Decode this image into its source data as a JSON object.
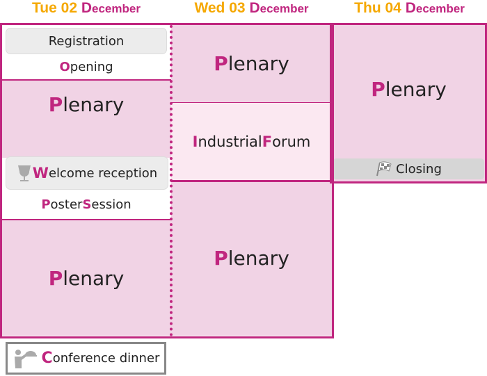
{
  "colors": {
    "accent": "#c0267f",
    "day": "#f5a800",
    "session": "#f1d3e5",
    "forum": "#fbe8f1",
    "break": "#ececec"
  },
  "days": [
    {
      "weekday_date": "Tue 02",
      "month_initial": "D",
      "month_rest": "ecember"
    },
    {
      "weekday_date": "Wed 03",
      "month_initial": "D",
      "month_rest": "ecember"
    },
    {
      "weekday_date": "Thu 04",
      "month_initial": "D",
      "month_rest": "ecember"
    }
  ],
  "tue": {
    "registration": "Registration",
    "opening": {
      "initial": "O",
      "rest": "pening"
    },
    "plenary1": {
      "initial": "P",
      "rest": "lenary"
    },
    "welcome": {
      "initial": "W",
      "rest": "elcome reception",
      "icon": "wine-glass-icon"
    },
    "poster": {
      "i1": "P",
      "r1": "oster ",
      "i2": "S",
      "r2": "ession"
    },
    "plenary2": {
      "initial": "P",
      "rest": "lenary"
    }
  },
  "wed": {
    "plenary1": {
      "initial": "P",
      "rest": "lenary"
    },
    "forum": {
      "i1": "I",
      "r1": "ndustrial ",
      "i2": "F",
      "r2": "orum"
    },
    "plenary2": {
      "initial": "P",
      "rest": "lenary"
    }
  },
  "thu": {
    "plenary": {
      "initial": "P",
      "rest": "lenary"
    },
    "closing": {
      "label": "Closing",
      "icon": "checkered-flag-icon"
    }
  },
  "dinner": {
    "initial": "C",
    "rest": "onference dinner",
    "icon": "waiter-icon"
  }
}
